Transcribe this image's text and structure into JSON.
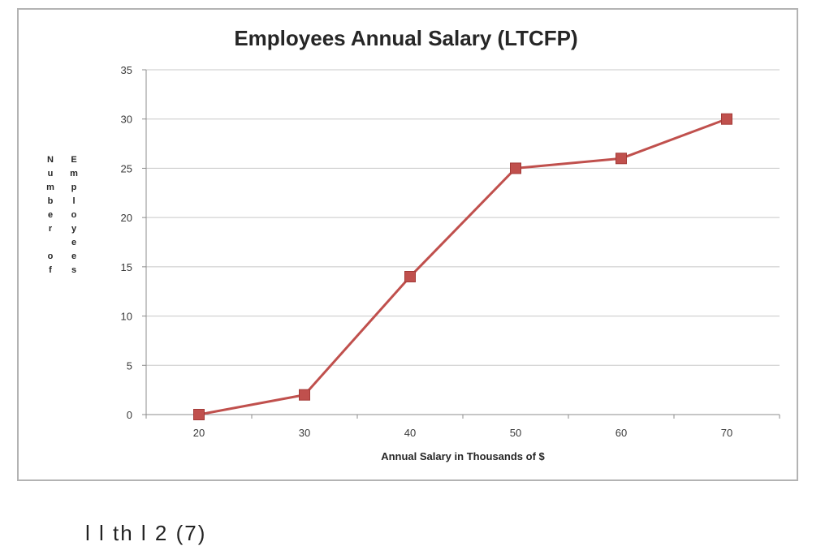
{
  "chart_data": {
    "type": "line",
    "title": "Employees Annual Salary (LTCFP)",
    "xlabel": "Annual Salary in Thousands of $",
    "ylabel_words": [
      "Number of",
      "Employees"
    ],
    "x": [
      20,
      30,
      40,
      50,
      60,
      70
    ],
    "y": [
      0,
      2,
      14,
      25,
      26,
      30
    ],
    "x_ticks": [
      "20",
      "30",
      "40",
      "50",
      "60",
      "70"
    ],
    "y_ticks": [
      "0",
      "5",
      "10",
      "15",
      "20",
      "25",
      "30",
      "35"
    ],
    "ylim": [
      0,
      35
    ],
    "grid": true,
    "series": [
      {
        "values": [
          0,
          2,
          14,
          25,
          26,
          30
        ],
        "color": "#c0504d",
        "marker": "square"
      }
    ]
  },
  "bottom_partial_text": "l                   l                 th           l  2 (7)"
}
